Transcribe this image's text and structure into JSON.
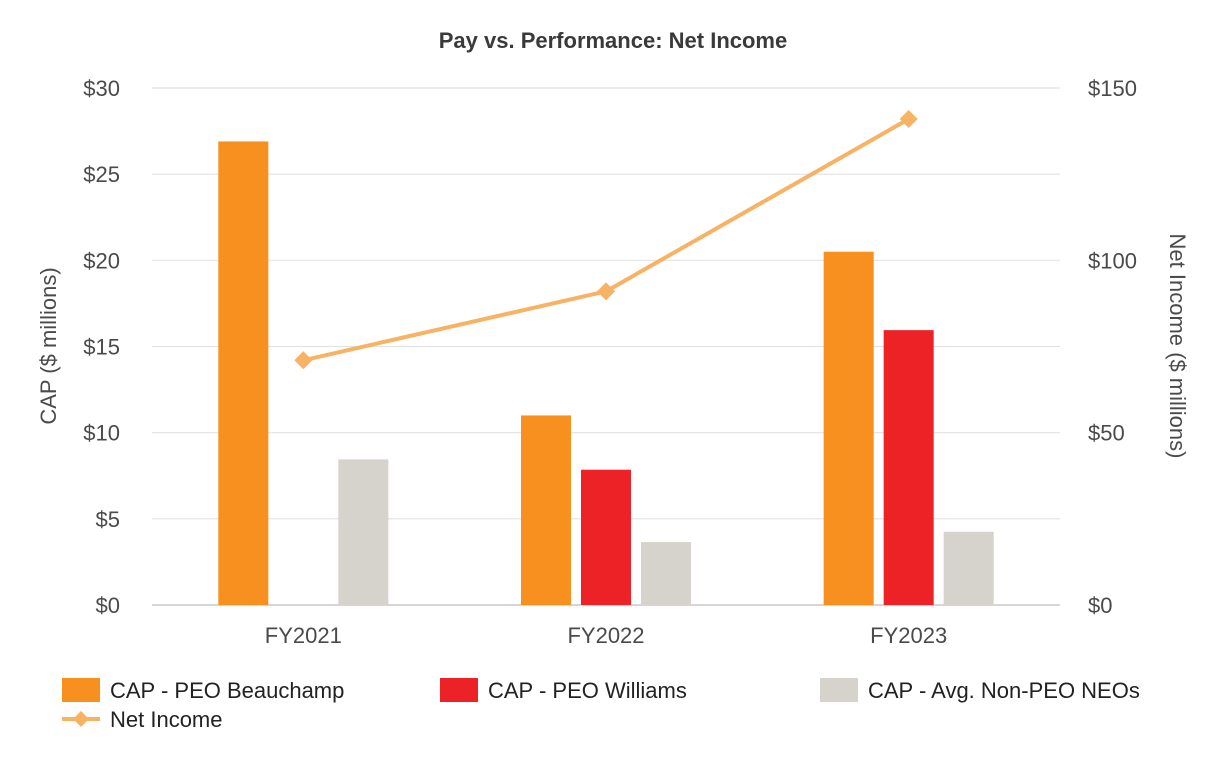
{
  "chart_data": {
    "type": "bar",
    "title": "Pay vs. Performance: Net Income",
    "categories": [
      "FY2021",
      "FY2022",
      "FY2023"
    ],
    "ylabel": "CAP  ($ millions)",
    "y2label": "Net Income ($ millions)",
    "ylim": [
      0,
      30
    ],
    "y2lim": [
      0,
      150
    ],
    "yticks": [
      "$0",
      "$5",
      "$10",
      "$15",
      "$20",
      "$25",
      "$30"
    ],
    "y2ticks": [
      "$0",
      "$50",
      "$100",
      "$150"
    ],
    "series": [
      {
        "name": "CAP - PEO Beauchamp",
        "type": "bar",
        "axis": "left",
        "color": "#F7901E",
        "values": [
          26.9,
          11.0,
          20.5
        ]
      },
      {
        "name": "CAP - PEO Williams",
        "type": "bar",
        "axis": "left",
        "color": "#EC2227",
        "values": [
          null,
          7.85,
          15.95
        ]
      },
      {
        "name": "CAP - Avg. Non-PEO NEOs",
        "type": "bar",
        "axis": "left",
        "color": "#D6D2CC",
        "values": [
          8.45,
          3.65,
          4.25
        ]
      },
      {
        "name": "Net Income",
        "type": "line",
        "axis": "right",
        "color": "#F7B263",
        "values": [
          71,
          91,
          141
        ]
      }
    ]
  }
}
